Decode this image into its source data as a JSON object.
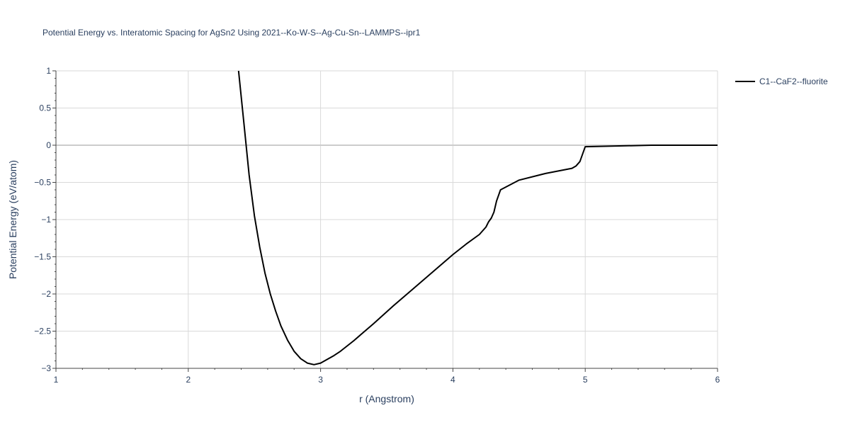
{
  "chart_data": {
    "type": "line",
    "title": "Potential Energy vs. Interatomic Spacing for AgSn2 Using 2021--Ko-W-S--Ag-Cu-Sn--LAMMPS--ipr1",
    "xlabel": "r (Angstrom)",
    "ylabel": "Potential Energy (eV/atom)",
    "xlim": [
      1,
      6
    ],
    "ylim": [
      -3,
      1
    ],
    "x_ticks": [
      1,
      2,
      3,
      4,
      5,
      6
    ],
    "x_tick_labels": [
      "1",
      "2",
      "3",
      "4",
      "5",
      "6"
    ],
    "y_ticks": [
      1,
      0.5,
      0,
      -0.5,
      -1,
      -1.5,
      -2,
      -2.5,
      -3
    ],
    "y_tick_labels": [
      "1",
      "0.5",
      "0",
      "−0.5",
      "−1",
      "−1.5",
      "−2",
      "−2.5",
      "−3"
    ],
    "grid": true,
    "legend_position": "top-right",
    "colors": {
      "line": "#000000",
      "grid": "#d9d9d9",
      "zero_line": "#cccccc",
      "text": "#2a3f5f"
    },
    "series": [
      {
        "name": "C1--CaF2--fluorite",
        "x": [
          2.38,
          2.42,
          2.46,
          2.5,
          2.54,
          2.58,
          2.62,
          2.66,
          2.7,
          2.75,
          2.8,
          2.85,
          2.9,
          2.95,
          3.0,
          3.05,
          3.1,
          3.15,
          3.25,
          3.4,
          3.55,
          3.7,
          3.85,
          4.0,
          4.1,
          4.2,
          4.25,
          4.27,
          4.29,
          4.31,
          4.33,
          4.36,
          4.5,
          4.7,
          4.9,
          4.93,
          4.96,
          5.0,
          5.5,
          6.0
        ],
        "y": [
          1.0,
          0.3,
          -0.4,
          -0.95,
          -1.37,
          -1.72,
          -2.0,
          -2.23,
          -2.43,
          -2.62,
          -2.77,
          -2.87,
          -2.93,
          -2.95,
          -2.93,
          -2.88,
          -2.83,
          -2.77,
          -2.63,
          -2.4,
          -2.16,
          -1.93,
          -1.7,
          -1.47,
          -1.33,
          -1.2,
          -1.1,
          -1.03,
          -0.98,
          -0.9,
          -0.75,
          -0.6,
          -0.47,
          -0.38,
          -0.31,
          -0.28,
          -0.22,
          -0.02,
          0.0,
          0.0
        ]
      }
    ]
  }
}
